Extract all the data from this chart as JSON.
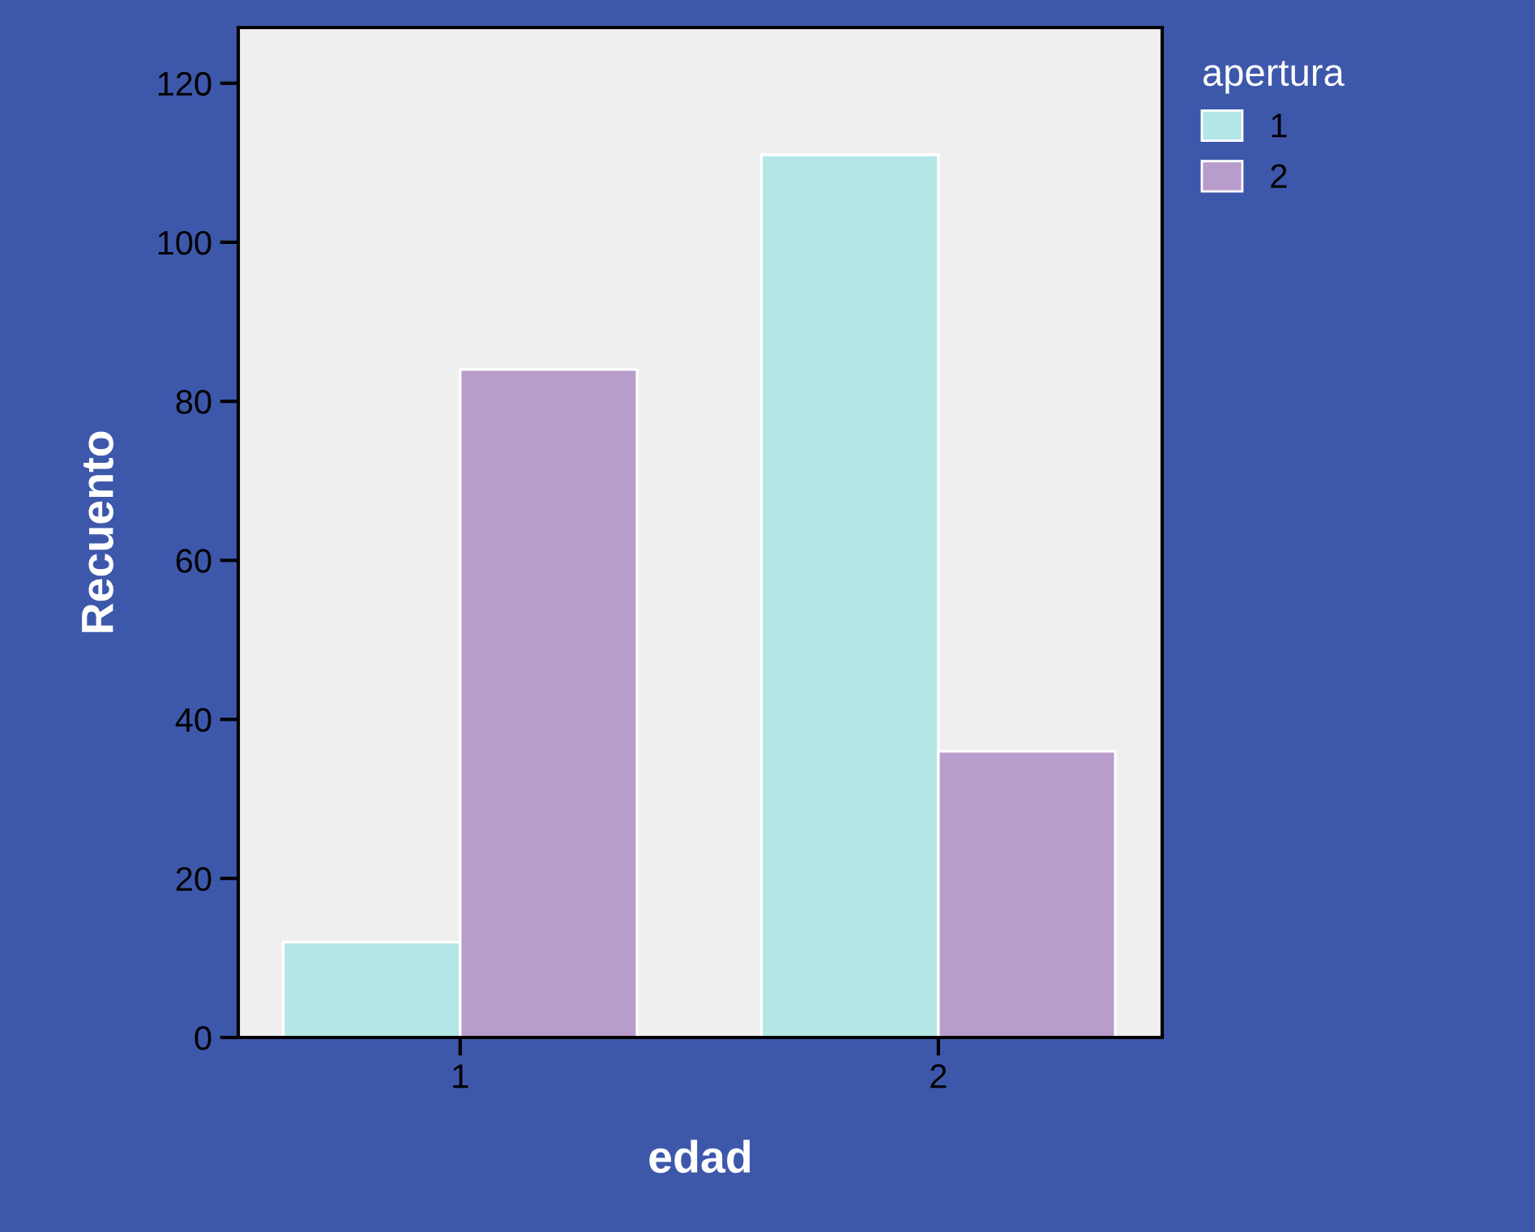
{
  "chart_data": {
    "type": "bar",
    "xlabel": "edad",
    "ylabel": "Recuento",
    "legend_title": "apertura",
    "categories": [
      "1",
      "2"
    ],
    "series": [
      {
        "name": "1",
        "color": "#b4e6e6",
        "values": [
          12,
          111
        ]
      },
      {
        "name": "2",
        "color": "#b89ccb",
        "values": [
          84,
          36
        ]
      }
    ],
    "ylim": [
      0,
      127
    ],
    "yticks": [
      0,
      20,
      40,
      60,
      80,
      100,
      120
    ],
    "grid": false,
    "legend": "top right"
  }
}
